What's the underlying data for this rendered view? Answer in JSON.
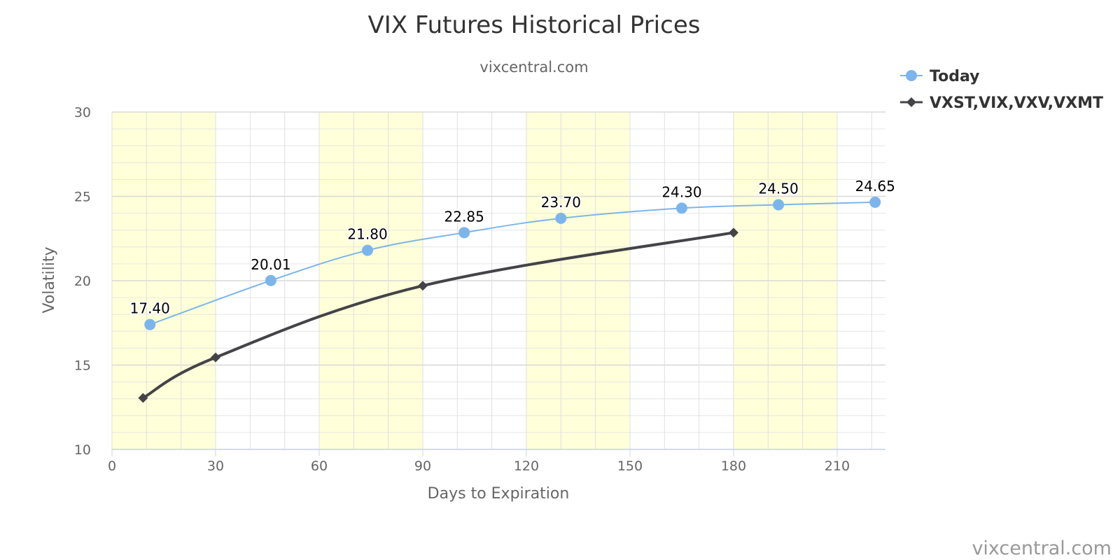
{
  "chart_data": {
    "type": "line",
    "title": "VIX Futures Historical Prices",
    "subtitle": "vixcentral.com",
    "xlabel": "Days to Expiration",
    "ylabel": "Volatility",
    "xlim": [
      0,
      224
    ],
    "ylim": [
      10,
      30
    ],
    "x_ticks": [
      0,
      30,
      60,
      90,
      120,
      150,
      180,
      210
    ],
    "y_ticks": [
      10,
      15,
      20,
      25,
      30
    ],
    "grid": true,
    "legend_position": "top-right",
    "plot_bands": [
      [
        0,
        30
      ],
      [
        60,
        90
      ],
      [
        120,
        150
      ],
      [
        180,
        210
      ]
    ],
    "band_color": "#ffffd9",
    "series": [
      {
        "name": "Today",
        "color": "#7cb5ec",
        "marker": "circle",
        "data_labels": true,
        "points": [
          {
            "x": 11,
            "y": 17.4,
            "label": "17.40"
          },
          {
            "x": 46,
            "y": 20.01,
            "label": "20.01"
          },
          {
            "x": 74,
            "y": 21.8,
            "label": "21.80"
          },
          {
            "x": 102,
            "y": 22.85,
            "label": "22.85"
          },
          {
            "x": 130,
            "y": 23.7,
            "label": "23.70"
          },
          {
            "x": 165,
            "y": 24.3,
            "label": "24.30"
          },
          {
            "x": 193,
            "y": 24.5,
            "label": "24.50"
          },
          {
            "x": 221,
            "y": 24.65,
            "label": "24.65"
          }
        ]
      },
      {
        "name": "VXST,VIX,VXV,VXMT",
        "color": "#434348",
        "marker": "diamond",
        "data_labels": false,
        "points": [
          {
            "x": 9,
            "y": 13.05
          },
          {
            "x": 30,
            "y": 15.45
          },
          {
            "x": 90,
            "y": 19.7
          },
          {
            "x": 180,
            "y": 22.85
          }
        ]
      }
    ]
  },
  "credit": "vixcentral.com"
}
